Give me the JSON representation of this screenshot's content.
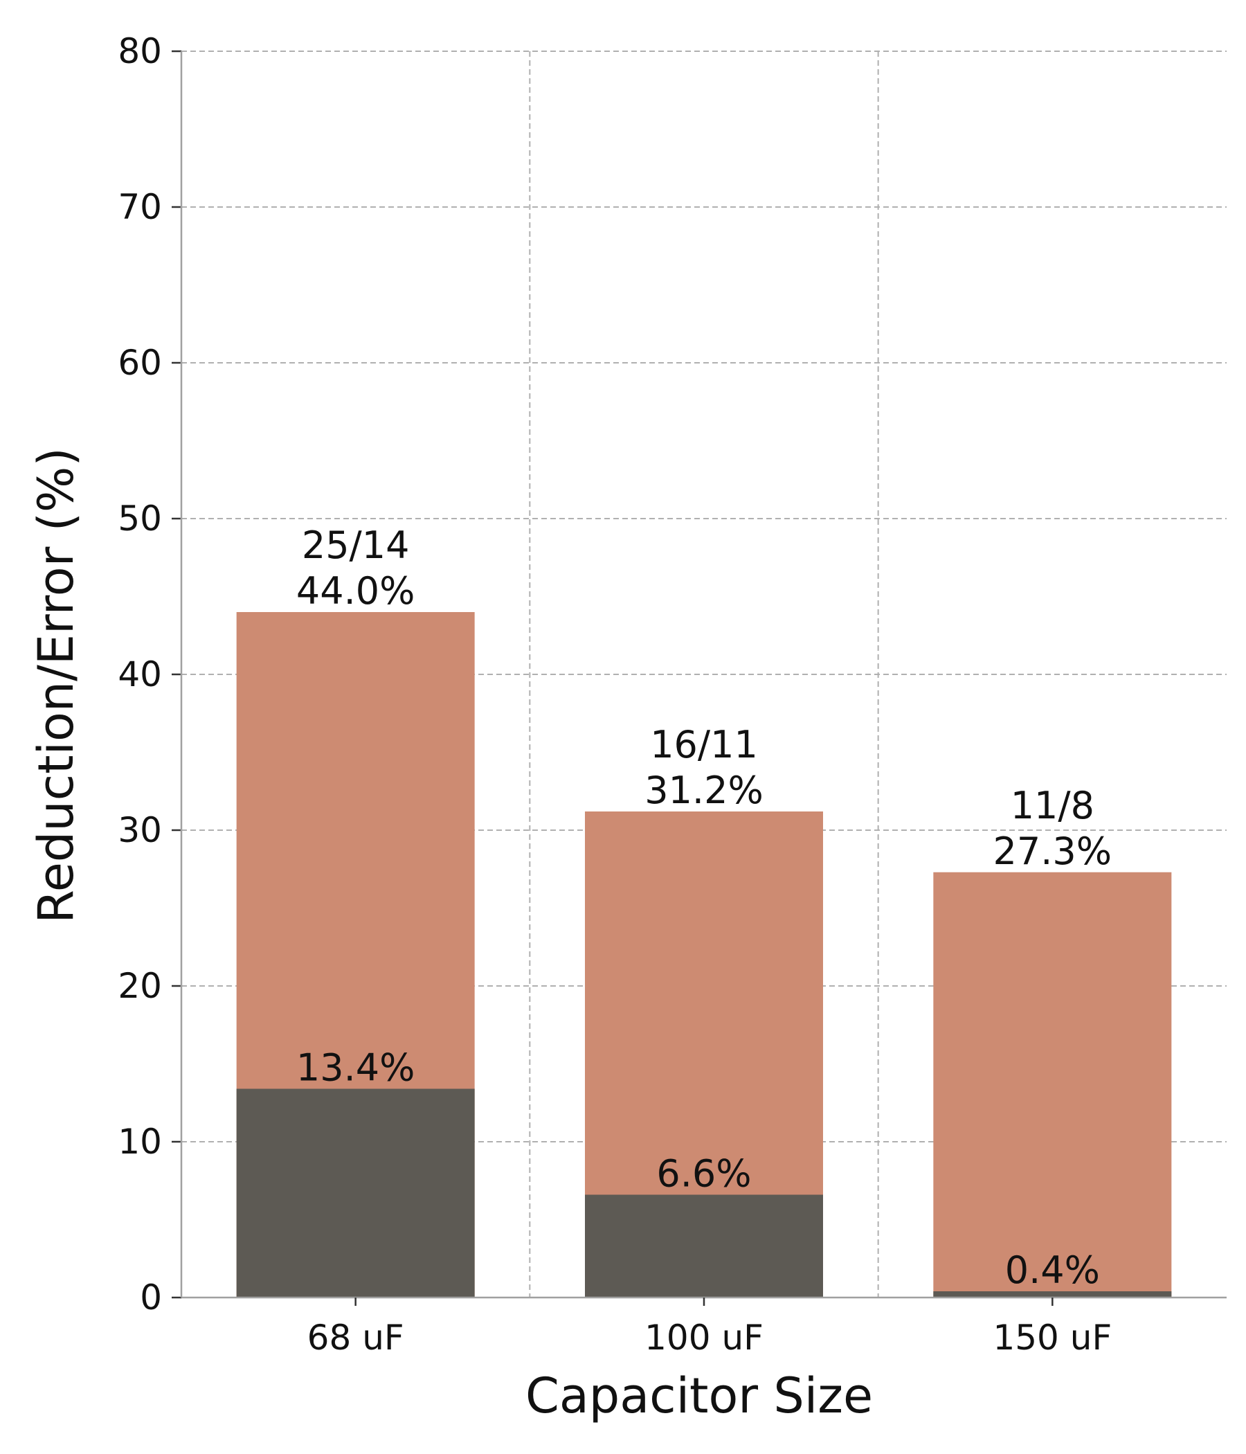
{
  "chart_data": {
    "type": "bar",
    "stacked": false,
    "xlabel": "Capacitor Size",
    "ylabel": "Reduction/Error (%)",
    "ylim": [
      0,
      80
    ],
    "yticks": [
      0,
      10,
      20,
      30,
      40,
      50,
      60,
      70,
      80
    ],
    "grid": true,
    "categories": [
      "68 uF",
      "100 uF",
      "150 uF"
    ],
    "series": [
      {
        "color": "#cd8b72",
        "values": [
          44.0,
          31.2,
          27.3
        ],
        "value_labels": [
          "44.0%",
          "31.2%",
          "27.3%"
        ],
        "count_labels": [
          "25/14",
          "16/11",
          "11/8"
        ]
      },
      {
        "color": "#5d5a54",
        "values": [
          13.4,
          6.6,
          0.4
        ],
        "value_labels": [
          "13.4%",
          "6.6%",
          "0.4%"
        ]
      }
    ]
  }
}
